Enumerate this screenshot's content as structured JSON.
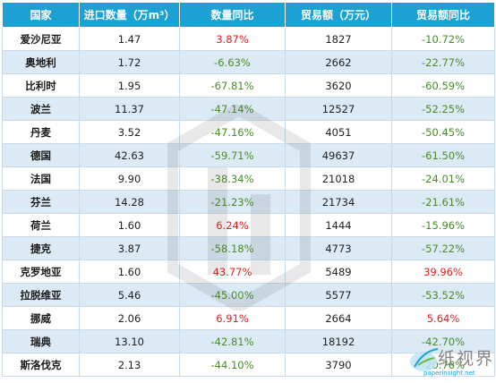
{
  "table": {
    "headers": [
      "国家",
      "进口数量（万m³）",
      "数量同比",
      "贸易额（万元）",
      "贸易额同比"
    ],
    "rows": [
      {
        "country": "爱沙尼亚",
        "qty": "1.47",
        "qty_yoy": "3.87%",
        "qty_trend": "up",
        "value": "1827",
        "value_yoy": "-10.72%",
        "value_trend": "down"
      },
      {
        "country": "奥地利",
        "qty": "1.72",
        "qty_yoy": "-6.63%",
        "qty_trend": "down",
        "value": "2662",
        "value_yoy": "-22.77%",
        "value_trend": "down"
      },
      {
        "country": "比利时",
        "qty": "1.95",
        "qty_yoy": "-67.81%",
        "qty_trend": "down",
        "value": "3620",
        "value_yoy": "-60.59%",
        "value_trend": "down"
      },
      {
        "country": "波兰",
        "qty": "11.37",
        "qty_yoy": "-47.14%",
        "qty_trend": "down",
        "value": "12527",
        "value_yoy": "-52.25%",
        "value_trend": "down"
      },
      {
        "country": "丹麦",
        "qty": "3.52",
        "qty_yoy": "-47.16%",
        "qty_trend": "down",
        "value": "4051",
        "value_yoy": "-50.45%",
        "value_trend": "down"
      },
      {
        "country": "德国",
        "qty": "42.63",
        "qty_yoy": "-59.71%",
        "qty_trend": "down",
        "value": "49637",
        "value_yoy": "-61.50%",
        "value_trend": "down"
      },
      {
        "country": "法国",
        "qty": "9.90",
        "qty_yoy": "-38.34%",
        "qty_trend": "down",
        "value": "21018",
        "value_yoy": "-24.01%",
        "value_trend": "down"
      },
      {
        "country": "芬兰",
        "qty": "14.28",
        "qty_yoy": "-21.23%",
        "qty_trend": "down",
        "value": "21734",
        "value_yoy": "-21.61%",
        "value_trend": "down"
      },
      {
        "country": "荷兰",
        "qty": "1.60",
        "qty_yoy": "6.24%",
        "qty_trend": "up",
        "value": "1444",
        "value_yoy": "-15.96%",
        "value_trend": "down"
      },
      {
        "country": "捷克",
        "qty": "3.87",
        "qty_yoy": "-58.18%",
        "qty_trend": "down",
        "value": "4773",
        "value_yoy": "-57.22%",
        "value_trend": "down"
      },
      {
        "country": "克罗地亚",
        "qty": "1.60",
        "qty_yoy": "43.77%",
        "qty_trend": "up",
        "value": "5489",
        "value_yoy": "39.96%",
        "value_trend": "up"
      },
      {
        "country": "拉脱维亚",
        "qty": "5.46",
        "qty_yoy": "-45.00%",
        "qty_trend": "down",
        "value": "5577",
        "value_yoy": "-53.52%",
        "value_trend": "down"
      },
      {
        "country": "挪威",
        "qty": "2.06",
        "qty_yoy": "6.91%",
        "qty_trend": "up",
        "value": "2664",
        "value_yoy": "5.64%",
        "value_trend": "up"
      },
      {
        "country": "瑞典",
        "qty": "13.10",
        "qty_yoy": "-42.81%",
        "qty_trend": "down",
        "value": "18192",
        "value_yoy": "-42.70%",
        "value_trend": "down"
      },
      {
        "country": "斯洛伐克",
        "qty": "2.13",
        "qty_yoy": "-44.10%",
        "qty_trend": "down",
        "value": "3790",
        "value_yoy": "-20.76%",
        "value_trend": "down"
      }
    ]
  },
  "logo": {
    "text": "纸视界",
    "url": "paperinsight.net"
  },
  "colors": {
    "header_bg": "#1ba1d4",
    "positive": "#e02020",
    "negative": "#4a8a2a",
    "stripe": "#dceaf5"
  }
}
